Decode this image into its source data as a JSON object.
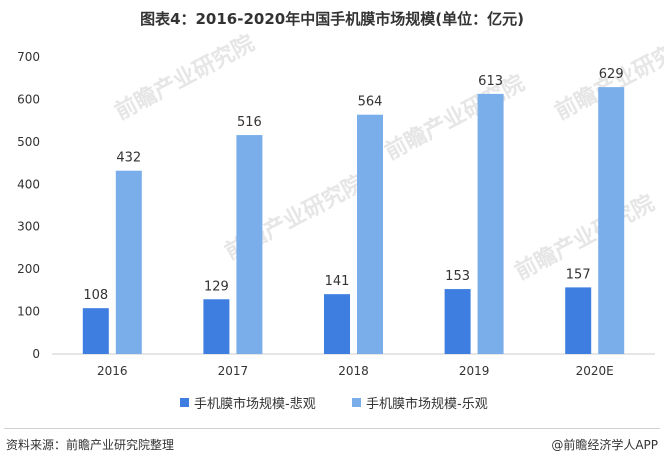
{
  "title": "图表4：2016-2020年中国手机膜市场规模(单位：亿元)",
  "source": "资料来源：前瞻产业研究院整理",
  "brand": "@前瞻经济学人APP",
  "watermark": "前瞻产业研究院",
  "colors": {
    "pessimistic": "#3d7ee0",
    "optimistic": "#7aaeea",
    "axis": "#cccccc",
    "text": "#333333"
  },
  "chart_data": {
    "type": "bar",
    "categories": [
      "2016",
      "2017",
      "2018",
      "2019",
      "2020E"
    ],
    "series": [
      {
        "name": "手机膜市场规模-悲观",
        "values": [
          108,
          129,
          141,
          153,
          157
        ]
      },
      {
        "name": "手机膜市场规模-乐观",
        "values": [
          432,
          516,
          564,
          613,
          629
        ]
      }
    ],
    "ylim": [
      0,
      700
    ],
    "yticks": [
      0,
      100,
      200,
      300,
      400,
      500,
      600,
      700
    ],
    "grid": false,
    "legend_position": "bottom-center"
  }
}
